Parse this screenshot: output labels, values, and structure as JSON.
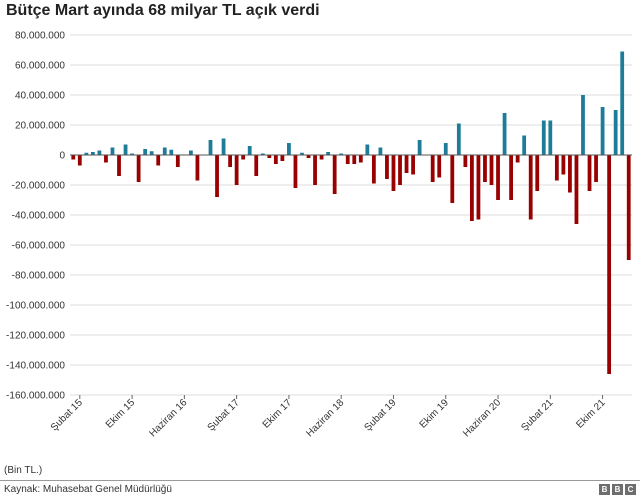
{
  "chart_data": {
    "type": "bar",
    "title": "Bütçe Mart ayında 68 milyar TL açık verdi",
    "ylim": [
      -160000000,
      80000000
    ],
    "yticks": [
      80000000,
      60000000,
      40000000,
      20000000,
      0,
      -20000000,
      -40000000,
      -60000000,
      -80000000,
      -100000000,
      -120000000,
      -140000000,
      -160000000
    ],
    "ytick_labels": [
      "80.000.000",
      "60.000.000",
      "40.000.000",
      "20.000.000",
      "0",
      "-20.000.000",
      "-40.000.000",
      "-60.000.000",
      "-80.000.000",
      "-100.000.000",
      "-120.000.000",
      "-140.000.000",
      "-160.000.000"
    ],
    "xtick_labels": [
      {
        "label": "Şubat 15",
        "index": 1
      },
      {
        "label": "Ekim 15",
        "index": 9
      },
      {
        "label": "Haziran 16",
        "index": 17
      },
      {
        "label": "Şubat 17",
        "index": 25
      },
      {
        "label": "Ekim 17",
        "index": 33
      },
      {
        "label": "Haziran 18",
        "index": 41
      },
      {
        "label": "Şubat 19",
        "index": 49
      },
      {
        "label": "Ekim 19",
        "index": 57
      },
      {
        "label": "Haziran 20",
        "index": 65
      },
      {
        "label": "Şubat 21",
        "index": 73
      },
      {
        "label": "Ekim 21",
        "index": 81
      }
    ],
    "grid": true,
    "colors": {
      "positive": "#1f7c99",
      "negative": "#990000"
    },
    "values": [
      -3000000,
      -7000000,
      1500000,
      2000000,
      3000000,
      -5000000,
      5000000,
      -14000000,
      7000000,
      1000000,
      -18000000,
      4000000,
      2500000,
      -7000000,
      5000000,
      3500000,
      -8000000,
      0,
      3000000,
      -17000000,
      0,
      10000000,
      -28000000,
      11000000,
      -8000000,
      -20000000,
      -3000000,
      6000000,
      -14000000,
      1000000,
      -2000000,
      -6000000,
      -4000000,
      8000000,
      -22000000,
      1500000,
      -2000000,
      -20000000,
      -3000000,
      2000000,
      -26000000,
      1000000,
      -6000000,
      -6000000,
      -5000000,
      7000000,
      -19000000,
      5000000,
      -16000000,
      -24000000,
      -20000000,
      -12000000,
      -13000000,
      10000000,
      0,
      -18000000,
      -15000000,
      8000000,
      -32000000,
      21000000,
      -8000000,
      -44000000,
      -43000000,
      -18000000,
      -20000000,
      -30000000,
      28000000,
      -30000000,
      -5000000,
      13000000,
      -43000000,
      -24000000,
      23000000,
      23000000,
      -17000000,
      -13000000,
      -25000000,
      -46000000,
      40000000,
      -24000000,
      -18000000,
      32000000,
      -146000000,
      30000000,
      69000000,
      -70000000
    ]
  },
  "footer": {
    "unit_note": "(Bin TL.)",
    "source": "Kaynak: Muhasebat Genel Müdürlüğü",
    "logo": [
      "B",
      "B",
      "C"
    ]
  }
}
